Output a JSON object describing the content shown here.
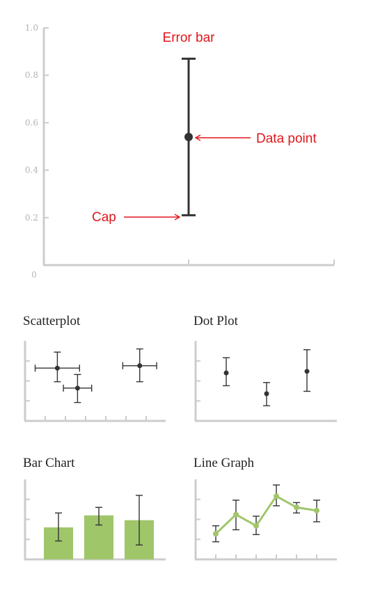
{
  "main_chart": {
    "y_ticks": [
      "0",
      "0.2",
      "0.4",
      "0.6",
      "0.8",
      "1.0"
    ],
    "point": {
      "value": 0.54,
      "low": 0.21,
      "high": 0.87
    },
    "annotations": {
      "error_bar": "Error bar",
      "data_point": "Data point",
      "cap": "Cap"
    },
    "colors": {
      "annotation": "#e0161b",
      "axis": "#cccccc",
      "mark": "#333333"
    }
  },
  "chart_data": [
    {
      "type": "scatter",
      "title": "Scatterplot",
      "points": [
        {
          "x": 0.8,
          "y": 0.66,
          "xerr": 0.55,
          "ylow": 0.49,
          "yhigh": 0.86
        },
        {
          "x": 1.3,
          "y": 0.41,
          "xerr": 0.35,
          "ylow": 0.23,
          "yhigh": 0.58
        },
        {
          "x": 2.84,
          "y": 0.69,
          "xerr": 0.42,
          "ylow": 0.49,
          "yhigh": 0.9
        }
      ]
    },
    {
      "type": "scatter",
      "title": "Dot Plot",
      "points": [
        {
          "x": 1,
          "y": 0.6,
          "ylow": 0.44,
          "yhigh": 0.79
        },
        {
          "x": 2,
          "y": 0.34,
          "ylow": 0.19,
          "yhigh": 0.48
        },
        {
          "x": 3,
          "y": 0.62,
          "ylow": 0.37,
          "yhigh": 0.89
        }
      ]
    },
    {
      "type": "bar",
      "title": "Bar Chart",
      "values": [
        0.4,
        0.55,
        0.49
      ],
      "errors": [
        {
          "low": 0.23,
          "high": 0.58
        },
        {
          "low": 0.43,
          "high": 0.65
        },
        {
          "low": 0.18,
          "high": 0.8
        }
      ],
      "color": "#a0c66a"
    },
    {
      "type": "line",
      "title": "Line Graph",
      "x": [
        1,
        2,
        3,
        4,
        5,
        6
      ],
      "values": [
        0.32,
        0.56,
        0.42,
        0.79,
        0.65,
        0.61
      ],
      "errors": [
        {
          "low": 0.22,
          "high": 0.42
        },
        {
          "low": 0.37,
          "high": 0.74
        },
        {
          "low": 0.31,
          "high": 0.54
        },
        {
          "low": 0.67,
          "high": 0.93
        },
        {
          "low": 0.58,
          "high": 0.71
        },
        {
          "low": 0.47,
          "high": 0.74
        }
      ],
      "color": "#a0c66a"
    }
  ]
}
